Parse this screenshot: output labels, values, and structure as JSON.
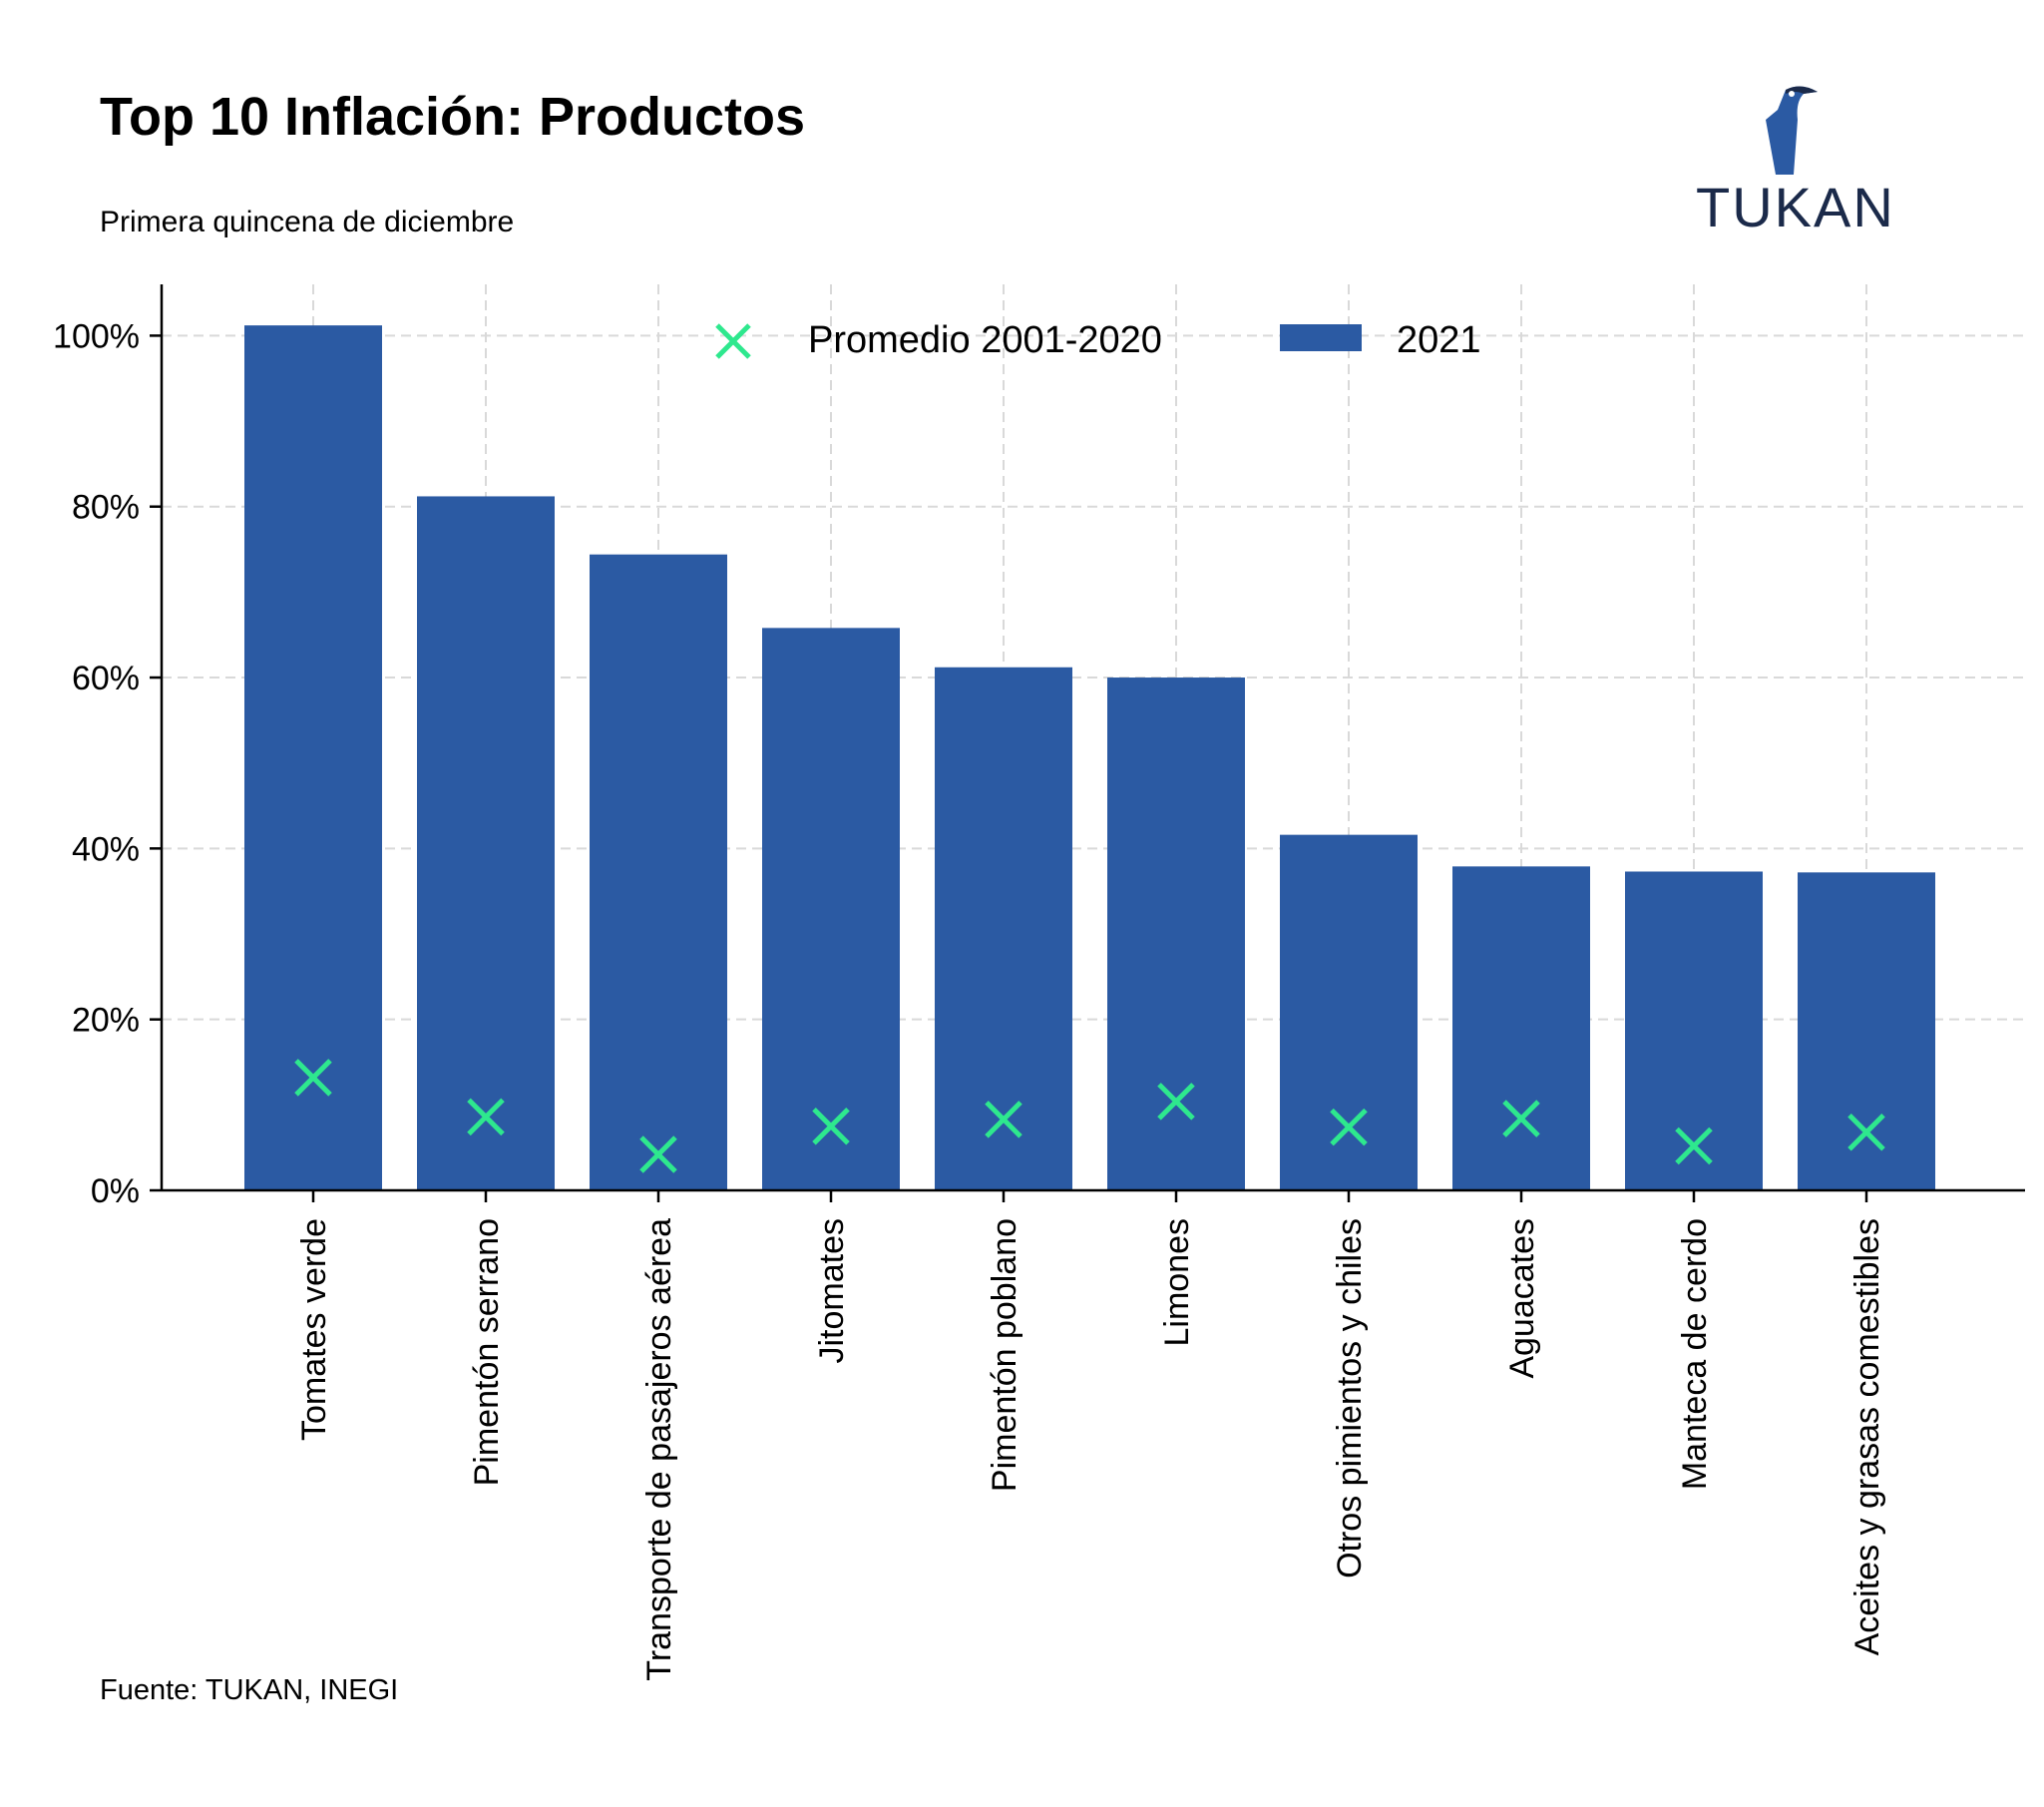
{
  "header": {
    "title": "Top 10 Inflación: Productos",
    "subtitle": "Primera quincena de diciembre"
  },
  "footer": {
    "source": "Fuente: TUKAN, INEGI"
  },
  "logo": {
    "text": "TUKAN",
    "icon": "toucan-icon"
  },
  "colors": {
    "bar": "#2b5aa3",
    "marker": "#2ee88e",
    "grid": "#d9d9d9",
    "axis": "#000000"
  },
  "chart_data": {
    "type": "bar",
    "categories": [
      "Tomates verde",
      "Pimentón serrano",
      "Transporte de pasajeros aérea",
      "Jitomates",
      "Pimentón poblano",
      "Limones",
      "Otros pimientos y chiles",
      "Aguacates",
      "Manteca de cerdo",
      "Aceites y grasas comestibles"
    ],
    "series": [
      {
        "name": "2021",
        "kind": "bar",
        "values": [
          101.2,
          81.2,
          74.4,
          65.8,
          61.2,
          60.0,
          41.6,
          37.9,
          37.3,
          37.2
        ]
      },
      {
        "name": "Promedio 2001-2020",
        "kind": "marker",
        "values": [
          13.2,
          8.6,
          4.2,
          7.5,
          8.3,
          10.4,
          7.4,
          8.4,
          5.2,
          6.8
        ]
      }
    ],
    "yticks": [
      "0%",
      "20%",
      "40%",
      "60%",
      "80%",
      "100%"
    ],
    "ytick_values": [
      0,
      20,
      40,
      60,
      80,
      100
    ],
    "ylim": [
      0,
      106
    ],
    "grid": true,
    "legend": "top-center"
  }
}
